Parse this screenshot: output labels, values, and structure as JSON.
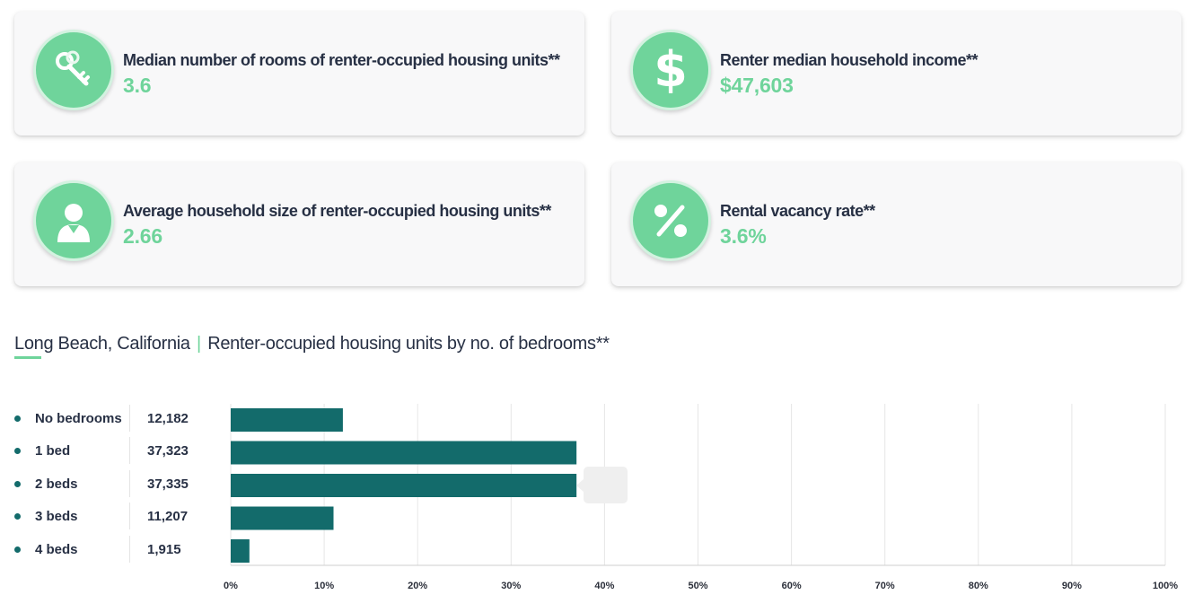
{
  "cards": [
    {
      "label": "Median number of rooms of renter-occupied housing units**",
      "value": "3.6",
      "icon": "key-icon"
    },
    {
      "label": "Renter median household income**",
      "value": "$47,603",
      "icon": "dollar-icon"
    },
    {
      "label": "Average household size of renter-occupied housing units**",
      "value": "2.66",
      "icon": "person-icon"
    },
    {
      "label": "Rental vacancy rate**",
      "value": "3.6%",
      "icon": "percent-icon"
    }
  ],
  "chart": {
    "location": "Long Beach, California",
    "separator": "|",
    "subtitle": "Renter-occupied housing units by no. of bedrooms**"
  },
  "colors": {
    "accent": "#6fd49b",
    "bar": "#136b6b"
  },
  "chart_data": {
    "type": "bar",
    "orientation": "horizontal",
    "categories": [
      "No bedrooms",
      "1 bed",
      "2 beds",
      "3 beds",
      "4 beds"
    ],
    "counts": [
      "12,182",
      "37,323",
      "37,335",
      "11,207",
      "1,915"
    ],
    "values": [
      12.0,
      37.0,
      37.0,
      11.0,
      2.0
    ],
    "xlim": [
      0,
      100
    ],
    "xticks": [
      "0%",
      "10%",
      "20%",
      "30%",
      "40%",
      "50%",
      "60%",
      "70%",
      "80%",
      "90%",
      "100%"
    ],
    "grid": true,
    "legend": "left"
  }
}
